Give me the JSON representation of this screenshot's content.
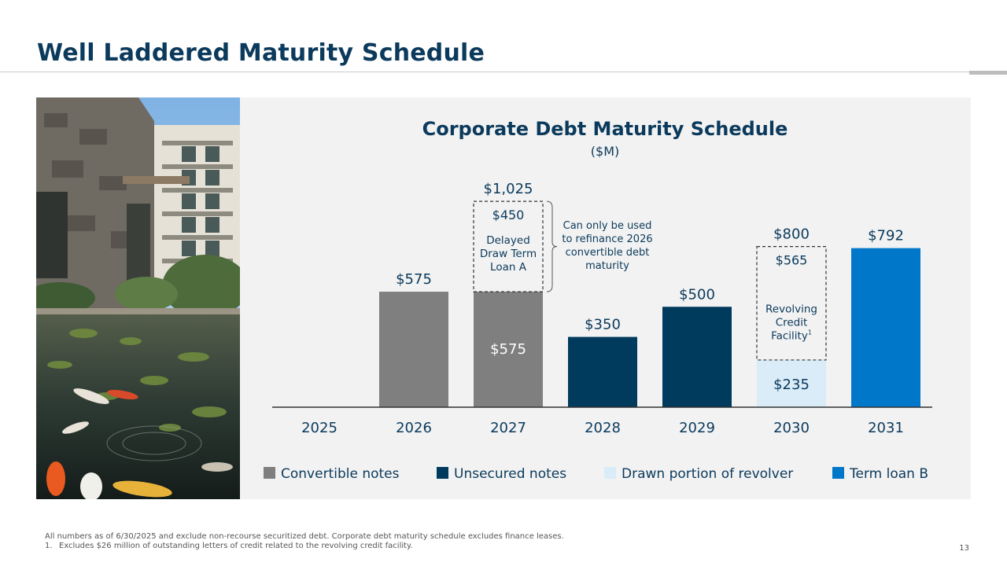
{
  "page": {
    "title": "Well Laddered Maturity Schedule",
    "footnote_main": "All numbers as of 6/30/2025 and exclude non-recourse securitized debt. Corporate debt maturity schedule excludes finance leases.",
    "footnote_1_marker": "1.",
    "footnote_1_text": "Excludes $26 million of outstanding letters of credit related to the revolving credit facility.",
    "page_number": "13"
  },
  "photo": {
    "icon": "resort-courtyard-koi-pond-photo"
  },
  "colors": {
    "convertible": "#7f7f7f",
    "unsecured": "#003a5d",
    "revolver": "#d9ecf8",
    "term_loan": "#0077c8",
    "text": "#0b3a5c"
  },
  "chart_data": {
    "type": "bar",
    "title": "Corporate Debt Maturity Schedule",
    "subtitle": "($M)",
    "xlabel": "",
    "ylabel": "",
    "ylim": [
      0,
      1100
    ],
    "grid": false,
    "legend_placement": "bottom",
    "categories": [
      "2025",
      "2026",
      "2027",
      "2028",
      "2029",
      "2030",
      "2031"
    ],
    "series": [
      {
        "name": "Convertible notes",
        "key": "convertible",
        "values": [
          0,
          575,
          575,
          0,
          0,
          0,
          0
        ]
      },
      {
        "name": "Unsecured notes",
        "key": "unsecured",
        "values": [
          0,
          0,
          0,
          350,
          500,
          0,
          0
        ]
      },
      {
        "name": "Drawn portion of revolver",
        "key": "revolver",
        "values": [
          0,
          0,
          0,
          0,
          0,
          235,
          0
        ]
      },
      {
        "name": "Term loan B",
        "key": "term_loan",
        "values": [
          0,
          0,
          0,
          0,
          0,
          0,
          792
        ]
      }
    ],
    "undrawn": [
      {
        "category": "2027",
        "base": 575,
        "value": 450,
        "value_label": "$450",
        "lines": [
          "Delayed",
          "Draw Term",
          "Loan A"
        ]
      },
      {
        "category": "2030",
        "base": 235,
        "value": 565,
        "value_label": "$565",
        "lines": [
          "Revolving",
          "Credit",
          "Facility"
        ],
        "superscript": "1"
      }
    ],
    "totals": [
      {
        "category": "2026",
        "label": "$575"
      },
      {
        "category": "2027",
        "label": "$1,025"
      },
      {
        "category": "2028",
        "label": "$350"
      },
      {
        "category": "2029",
        "label": "$500"
      },
      {
        "category": "2030",
        "label": "$800"
      },
      {
        "category": "2031",
        "label": "$792"
      }
    ],
    "inner_labels": [
      {
        "category": "2027",
        "label": "$575"
      },
      {
        "category": "2030",
        "label": "$235"
      }
    ],
    "annotation": {
      "category": "2027",
      "lines": [
        "Can only be used",
        "to refinance 2026",
        "convertible debt",
        "maturity"
      ]
    }
  }
}
